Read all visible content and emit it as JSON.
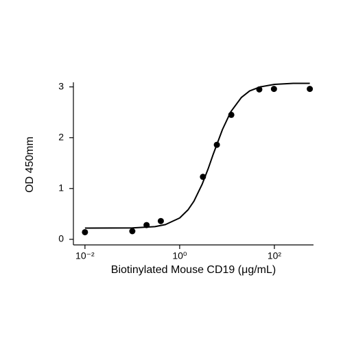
{
  "chart_data": {
    "type": "scatter",
    "x_label": "Biotinylated Mouse CD19 (μg/mL)",
    "y_label": "OD 450mm",
    "log_x": true,
    "grid": false,
    "xlim": [
      0.0057,
      670
    ],
    "ylim": [
      -0.11,
      3.09
    ],
    "xticks": [
      {
        "value": 0.01,
        "label": "10⁻²"
      },
      {
        "value": 1,
        "label": "10⁰"
      },
      {
        "value": 100,
        "label": "10²"
      }
    ],
    "yticks": [
      0,
      1,
      2,
      3
    ],
    "series": [
      {
        "mode": "markers",
        "color": "#000000",
        "x": [
          0.01,
          0.1,
          0.2,
          0.4,
          3.1,
          6.1,
          12.3,
          48,
          98,
          560
        ],
        "values": [
          0.14,
          0.16,
          0.28,
          0.36,
          1.23,
          1.86,
          2.45,
          2.95,
          2.96,
          2.96
        ]
      },
      {
        "mode": "line",
        "color": "#000000",
        "x": [
          0.01,
          0.1,
          0.3,
          0.5,
          1,
          1.5,
          2,
          3,
          4,
          5,
          8,
          12,
          20,
          30,
          50,
          100,
          250,
          560
        ],
        "values": [
          0.22,
          0.225,
          0.25,
          0.29,
          0.42,
          0.58,
          0.75,
          1.09,
          1.39,
          1.65,
          2.16,
          2.51,
          2.79,
          2.92,
          3.0,
          3.05,
          3.07,
          3.07
        ]
      }
    ]
  }
}
